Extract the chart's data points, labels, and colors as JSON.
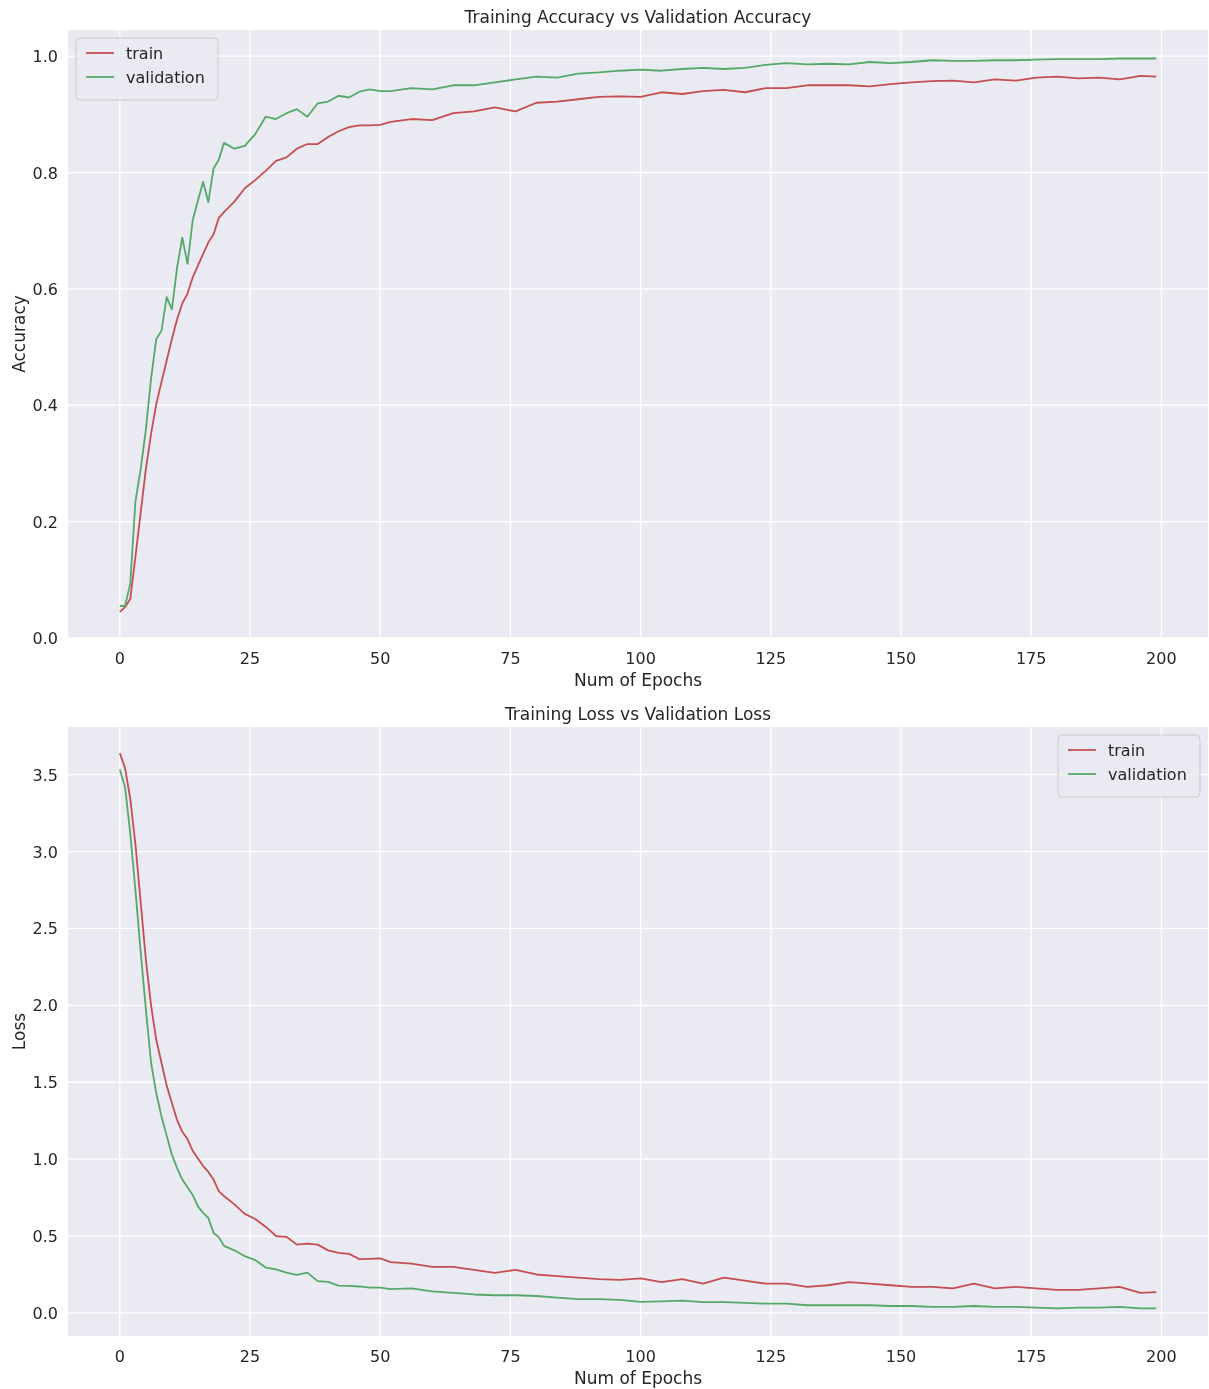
{
  "chart_data": [
    {
      "type": "line",
      "title": "Training Accuracy vs Validation Accuracy",
      "xlabel": "Num of Epochs",
      "ylabel": "Accuracy",
      "x": [
        0,
        1,
        2,
        3,
        4,
        5,
        6,
        7,
        8,
        9,
        10,
        11,
        12,
        13,
        14,
        15,
        16,
        17,
        18,
        19,
        20,
        22,
        24,
        26,
        28,
        30,
        32,
        34,
        36,
        38,
        40,
        42,
        44,
        46,
        48,
        50,
        52,
        56,
        60,
        64,
        68,
        72,
        76,
        80,
        84,
        88,
        92,
        96,
        100,
        104,
        108,
        112,
        116,
        120,
        124,
        128,
        132,
        136,
        140,
        144,
        148,
        152,
        156,
        160,
        164,
        168,
        172,
        176,
        180,
        184,
        188,
        192,
        196,
        199
      ],
      "series": [
        {
          "name": "train",
          "color": "#c44e52",
          "values": [
            0.045,
            0.053,
            0.067,
            0.14,
            0.215,
            0.29,
            0.351,
            0.402,
            0.44,
            0.477,
            0.514,
            0.548,
            0.575,
            0.592,
            0.62,
            0.64,
            0.66,
            0.68,
            0.694,
            0.722,
            0.732,
            0.75,
            0.773,
            0.787,
            0.803,
            0.82,
            0.826,
            0.841,
            0.849,
            0.849,
            0.861,
            0.871,
            0.878,
            0.881,
            0.881,
            0.882,
            0.887,
            0.892,
            0.89,
            0.902,
            0.905,
            0.912,
            0.905,
            0.92,
            0.922,
            0.926,
            0.93,
            0.931,
            0.93,
            0.938,
            0.935,
            0.94,
            0.942,
            0.938,
            0.945,
            0.945,
            0.95,
            0.95,
            0.95,
            0.948,
            0.952,
            0.955,
            0.957,
            0.958,
            0.955,
            0.96,
            0.958,
            0.963,
            0.965,
            0.962,
            0.963,
            0.96,
            0.966,
            0.965
          ]
        },
        {
          "name": "validation",
          "color": "#55a868",
          "values": [
            0.055,
            0.055,
            0.093,
            0.235,
            0.29,
            0.358,
            0.446,
            0.514,
            0.528,
            0.586,
            0.565,
            0.637,
            0.688,
            0.643,
            0.718,
            0.752,
            0.784,
            0.749,
            0.807,
            0.822,
            0.851,
            0.841,
            0.846,
            0.866,
            0.896,
            0.892,
            0.902,
            0.909,
            0.896,
            0.919,
            0.922,
            0.932,
            0.929,
            0.939,
            0.943,
            0.94,
            0.94,
            0.945,
            0.943,
            0.95,
            0.95,
            0.955,
            0.96,
            0.965,
            0.963,
            0.97,
            0.972,
            0.975,
            0.977,
            0.975,
            0.978,
            0.98,
            0.978,
            0.98,
            0.985,
            0.988,
            0.986,
            0.987,
            0.986,
            0.99,
            0.988,
            0.99,
            0.993,
            0.992,
            0.992,
            0.993,
            0.993,
            0.994,
            0.995,
            0.995,
            0.995,
            0.996,
            0.996,
            0.996
          ]
        }
      ],
      "xlim": [
        -9.95,
        208.95
      ],
      "xticks": [
        0,
        25,
        50,
        75,
        100,
        125,
        150,
        175,
        200
      ],
      "ylim": [
        0,
        1.045
      ],
      "yticks": [
        {
          "value": 0,
          "label": "0.0"
        },
        0.2,
        0.4,
        0.6,
        0.8,
        {
          "value": 1,
          "label": "1.0"
        }
      ],
      "grid": true,
      "legend": "top left"
    },
    {
      "type": "line",
      "title": "Training Loss vs Validation Loss",
      "xlabel": "Num of Epochs",
      "ylabel": "Loss",
      "x": [
        0,
        1,
        2,
        3,
        4,
        5,
        6,
        7,
        8,
        9,
        10,
        11,
        12,
        13,
        14,
        15,
        16,
        17,
        18,
        19,
        20,
        22,
        24,
        26,
        28,
        30,
        32,
        34,
        36,
        38,
        40,
        42,
        44,
        46,
        48,
        50,
        52,
        56,
        60,
        64,
        68,
        72,
        76,
        80,
        84,
        88,
        92,
        96,
        100,
        104,
        108,
        112,
        116,
        120,
        124,
        128,
        132,
        136,
        140,
        144,
        148,
        152,
        156,
        160,
        164,
        168,
        172,
        176,
        180,
        184,
        188,
        192,
        196,
        199
      ],
      "series": [
        {
          "name": "train",
          "color": "#c44e52",
          "values": [
            3.64,
            3.544,
            3.345,
            3.046,
            2.673,
            2.298,
            2.0,
            1.776,
            1.627,
            1.478,
            1.365,
            1.254,
            1.178,
            1.129,
            1.054,
            1.004,
            0.955,
            0.917,
            0.867,
            0.792,
            0.76,
            0.706,
            0.644,
            0.611,
            0.561,
            0.5,
            0.495,
            0.444,
            0.45,
            0.444,
            0.407,
            0.39,
            0.384,
            0.35,
            0.352,
            0.355,
            0.33,
            0.32,
            0.3,
            0.3,
            0.28,
            0.26,
            0.28,
            0.25,
            0.24,
            0.23,
            0.22,
            0.215,
            0.225,
            0.2,
            0.22,
            0.19,
            0.23,
            0.21,
            0.19,
            0.19,
            0.17,
            0.18,
            0.2,
            0.19,
            0.18,
            0.17,
            0.17,
            0.16,
            0.19,
            0.16,
            0.17,
            0.16,
            0.15,
            0.15,
            0.16,
            0.17,
            0.13,
            0.135
          ]
        },
        {
          "name": "validation",
          "color": "#55a868",
          "values": [
            3.533,
            3.42,
            3.121,
            2.748,
            2.349,
            1.975,
            1.627,
            1.428,
            1.278,
            1.153,
            1.029,
            0.942,
            0.867,
            0.817,
            0.767,
            0.693,
            0.651,
            0.618,
            0.52,
            0.493,
            0.436,
            0.407,
            0.369,
            0.344,
            0.295,
            0.283,
            0.262,
            0.247,
            0.262,
            0.207,
            0.202,
            0.178,
            0.176,
            0.172,
            0.164,
            0.164,
            0.155,
            0.16,
            0.14,
            0.13,
            0.12,
            0.115,
            0.115,
            0.11,
            0.1,
            0.09,
            0.09,
            0.085,
            0.072,
            0.075,
            0.08,
            0.07,
            0.07,
            0.065,
            0.06,
            0.06,
            0.05,
            0.05,
            0.05,
            0.05,
            0.045,
            0.045,
            0.04,
            0.04,
            0.045,
            0.04,
            0.04,
            0.035,
            0.03,
            0.035,
            0.035,
            0.04,
            0.03,
            0.03
          ]
        }
      ],
      "xlim": [
        -9.95,
        208.95
      ],
      "xticks": [
        0,
        25,
        50,
        75,
        100,
        125,
        150,
        175,
        200
      ],
      "ylim": [
        -0.15,
        3.81
      ],
      "yticks": [
        {
          "value": 0,
          "label": "0.0"
        },
        0.5,
        {
          "value": 1,
          "label": "1.0"
        },
        1.5,
        {
          "value": 2,
          "label": "2.0"
        },
        2.5,
        {
          "value": 3,
          "label": "3.0"
        },
        3.5
      ],
      "grid": true,
      "legend": "top right"
    }
  ]
}
